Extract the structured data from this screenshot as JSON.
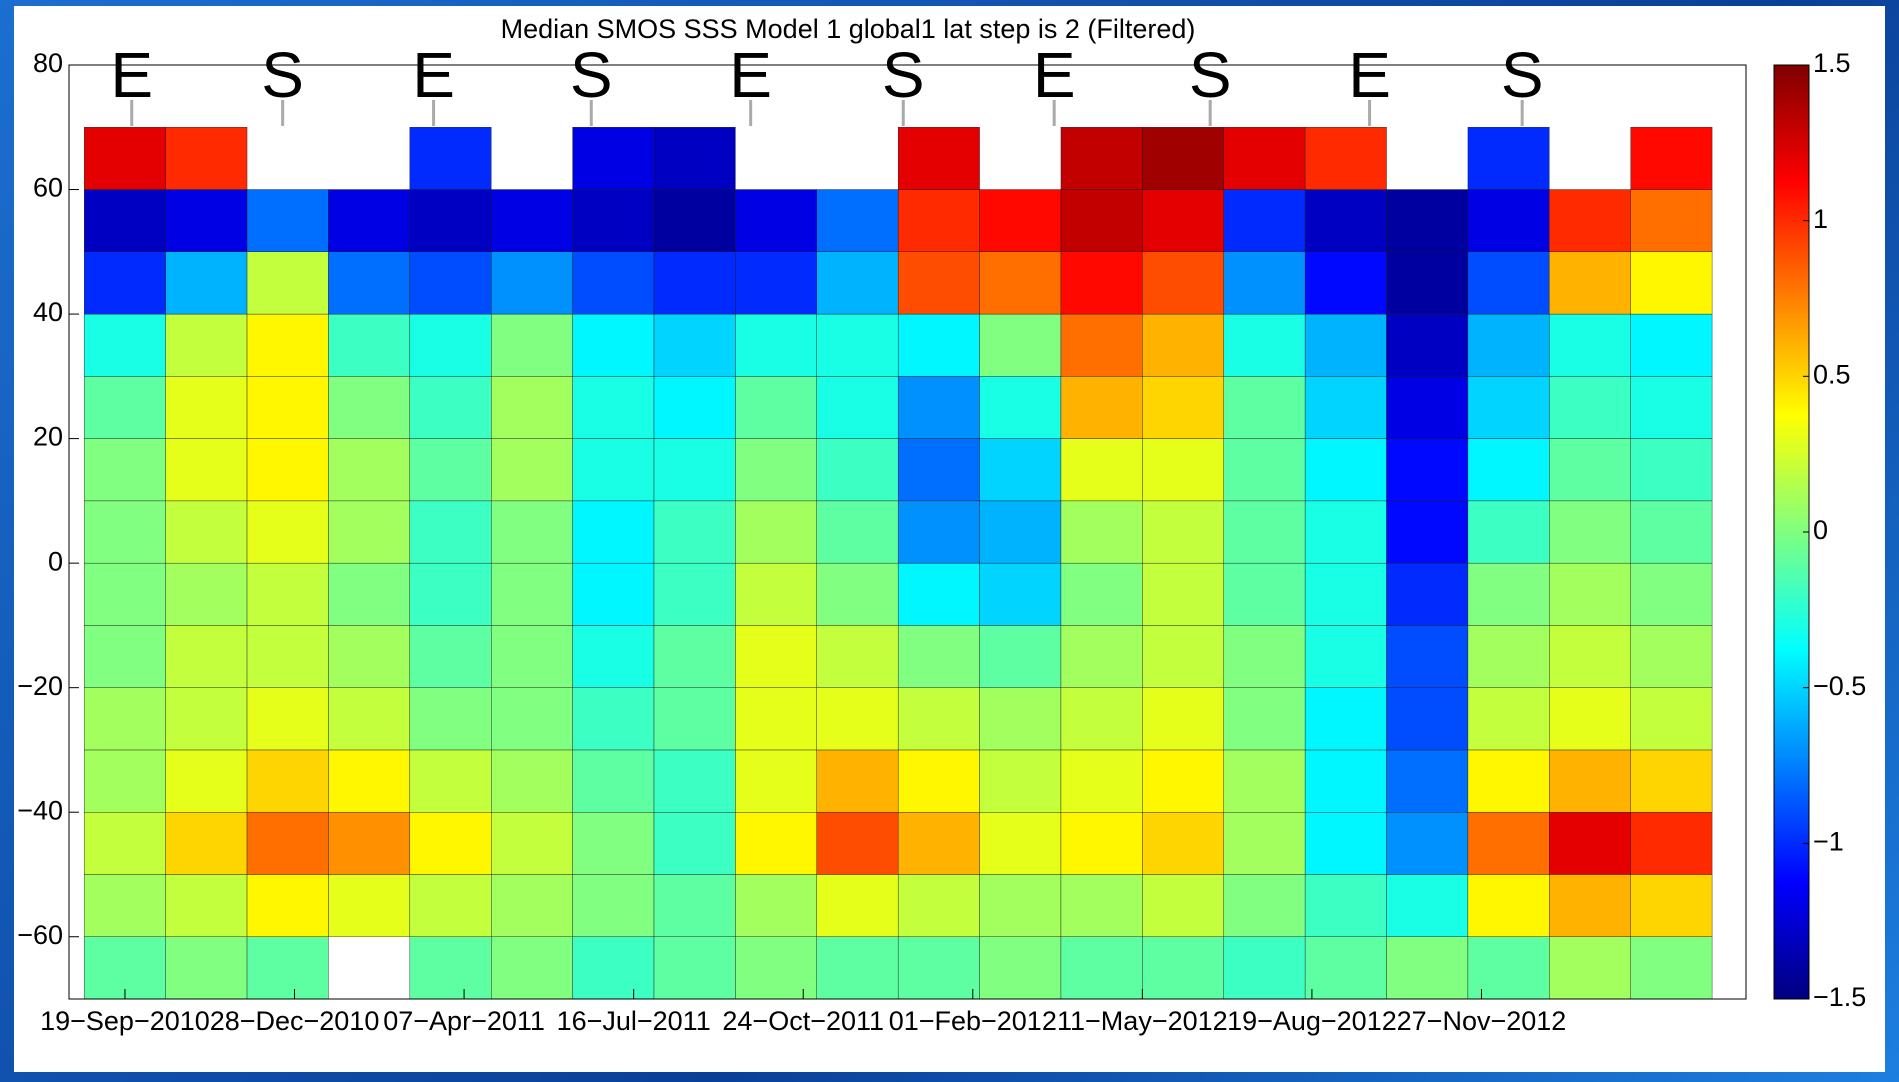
{
  "chart_data": {
    "type": "heatmap",
    "title": "Median SMOS SSS Model 1 global1 lat step is 2 (Filtered)",
    "colormap": "jet",
    "clim": [
      -1.5,
      1.5
    ],
    "cticks": [
      {
        "value": -1.5,
        "label": "−1.5"
      },
      {
        "value": -1,
        "label": "−1"
      },
      {
        "value": -0.5,
        "label": "−0.5"
      },
      0,
      0.5,
      1,
      1.5
    ],
    "xlim": [
      "2010-08-17",
      "2013-05-02"
    ],
    "xticks": [
      {
        "value": "2010-09-19",
        "label": "19−Sep−2010"
      },
      {
        "value": "2010-12-28",
        "label": "28−Dec−2010"
      },
      {
        "value": "2011-04-07",
        "label": "07−Apr−2011"
      },
      {
        "value": "2011-07-16",
        "label": "16−Jul−2011"
      },
      {
        "value": "2011-10-24",
        "label": "24−Oct−2011"
      },
      {
        "value": "2012-02-01",
        "label": "01−Feb−2012"
      },
      {
        "value": "2012-05-11",
        "label": "11−May−2012"
      },
      {
        "value": "2012-08-19",
        "label": "19−Aug−2012"
      },
      {
        "value": "2012-11-27",
        "label": "27−Nov−2012"
      }
    ],
    "ylim": [
      -70,
      80
    ],
    "yticks": [
      {
        "value": -60,
        "label": "−60"
      },
      {
        "value": -40,
        "label": "−40"
      },
      {
        "value": -20,
        "label": "−20"
      },
      0,
      20,
      40,
      60,
      80
    ],
    "annotations": [
      {
        "text": "E",
        "x": "2010-09-23"
      },
      {
        "text": "S",
        "x": "2010-12-21"
      },
      {
        "text": "E",
        "x": "2011-03-20"
      },
      {
        "text": "S",
        "x": "2011-06-21"
      },
      {
        "text": "E",
        "x": "2011-09-23"
      },
      {
        "text": "S",
        "x": "2011-12-22"
      },
      {
        "text": "E",
        "x": "2012-03-20"
      },
      {
        "text": "S",
        "x": "2012-06-20"
      },
      {
        "text": "E",
        "x": "2012-09-22"
      },
      {
        "text": "S",
        "x": "2012-12-21"
      }
    ],
    "x_edges": [
      "2010-08-26",
      "2010-10-13",
      "2010-11-30",
      "2011-01-17",
      "2011-03-06",
      "2011-04-23",
      "2011-06-10",
      "2011-07-28",
      "2011-09-14",
      "2011-11-01",
      "2011-12-19",
      "2012-02-05",
      "2012-03-24",
      "2012-05-11",
      "2012-06-28",
      "2012-08-15",
      "2012-10-02",
      "2012-11-19",
      "2013-01-06",
      "2013-02-23",
      "2013-04-12"
    ],
    "y_edges": [
      -70,
      -60,
      -50,
      -40,
      -30,
      -20,
      -10,
      0,
      10,
      20,
      30,
      40,
      50,
      60,
      70
    ],
    "z": [
      [
        -0.1,
        0,
        -0.1,
        null,
        -0.1,
        0,
        -0.2,
        -0.1,
        0,
        -0.1,
        -0.1,
        0,
        -0.1,
        -0.1,
        -0.2,
        -0.1,
        0,
        -0.1,
        0.1,
        0
      ],
      [
        0.1,
        0.2,
        0.4,
        0.3,
        0.2,
        0.1,
        0,
        -0.1,
        0.1,
        0.3,
        0.2,
        0.1,
        0.1,
        0.2,
        0,
        -0.2,
        -0.3,
        0.4,
        0.6,
        0.5
      ],
      [
        0.2,
        0.5,
        0.8,
        0.7,
        0.4,
        0.2,
        0,
        -0.2,
        0.4,
        0.9,
        0.6,
        0.3,
        0.4,
        0.5,
        0.1,
        -0.4,
        -0.7,
        0.8,
        1.2,
        1.0
      ],
      [
        0.1,
        0.3,
        0.5,
        0.4,
        0.2,
        0.1,
        -0.1,
        -0.2,
        0.3,
        0.6,
        0.4,
        0.2,
        0.3,
        0.4,
        0.1,
        -0.4,
        -0.8,
        0.4,
        0.6,
        0.5
      ],
      [
        0.1,
        0.2,
        0.3,
        0.2,
        0,
        0,
        -0.2,
        -0.1,
        0.3,
        0.3,
        0.2,
        0.1,
        0.2,
        0.3,
        0,
        -0.4,
        -0.9,
        0.2,
        0.3,
        0.2
      ],
      [
        0,
        0.2,
        0.2,
        0.1,
        -0.1,
        0,
        -0.3,
        -0.1,
        0.3,
        0.2,
        0,
        -0.1,
        0.1,
        0.2,
        0,
        -0.3,
        -0.9,
        0.1,
        0.2,
        0.1
      ],
      [
        0,
        0.1,
        0.2,
        0,
        -0.2,
        0,
        -0.4,
        -0.2,
        0.2,
        0,
        -0.4,
        -0.5,
        0,
        0.2,
        -0.1,
        -0.3,
        -1.0,
        0,
        0.1,
        0
      ],
      [
        0,
        0.2,
        0.3,
        0.1,
        -0.2,
        0,
        -0.4,
        -0.2,
        0.1,
        -0.1,
        -0.7,
        -0.6,
        0.1,
        0.2,
        -0.1,
        -0.3,
        -1.1,
        -0.2,
        0,
        -0.1
      ],
      [
        0,
        0.3,
        0.4,
        0.1,
        -0.1,
        0.1,
        -0.3,
        -0.3,
        0,
        -0.2,
        -0.8,
        -0.5,
        0.3,
        0.3,
        -0.1,
        -0.4,
        -1.1,
        -0.4,
        -0.1,
        -0.2
      ],
      [
        -0.1,
        0.3,
        0.4,
        0,
        -0.2,
        0.1,
        -0.3,
        -0.4,
        -0.1,
        -0.3,
        -0.7,
        -0.3,
        0.6,
        0.5,
        -0.1,
        -0.5,
        -1.2,
        -0.5,
        -0.2,
        -0.3
      ],
      [
        -0.3,
        0.2,
        0.4,
        -0.2,
        -0.3,
        0,
        -0.4,
        -0.5,
        -0.3,
        -0.3,
        -0.4,
        0,
        0.8,
        0.6,
        -0.3,
        -0.6,
        -1.3,
        -0.6,
        -0.3,
        -0.4
      ],
      [
        -1.0,
        -0.6,
        0.2,
        -0.8,
        -0.9,
        -0.7,
        -0.9,
        -1.0,
        -1.0,
        -0.6,
        0.9,
        0.8,
        1.1,
        0.9,
        -0.7,
        -1.1,
        -1.4,
        -0.9,
        0.6,
        0.4
      ],
      [
        -1.3,
        -1.2,
        -0.8,
        -1.2,
        -1.3,
        -1.2,
        -1.3,
        -1.4,
        -1.2,
        -0.8,
        1.0,
        1.1,
        1.3,
        1.2,
        -1.0,
        -1.3,
        -1.4,
        -1.2,
        1.0,
        0.8
      ],
      [
        1.2,
        1.0,
        null,
        null,
        -1.0,
        null,
        -1.2,
        -1.3,
        null,
        null,
        1.2,
        null,
        1.3,
        1.4,
        1.2,
        1.0,
        null,
        -1.0,
        null,
        1.1
      ]
    ]
  }
}
